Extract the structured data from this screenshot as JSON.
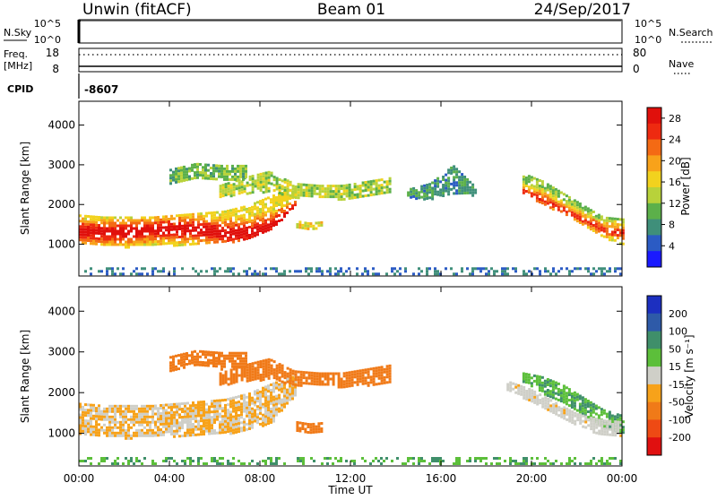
{
  "header": {
    "station": "Unwin (fitACF)",
    "beam": "Beam 01",
    "date": "24/Sep/2017"
  },
  "strips": {
    "nsky_label": "N.Sky",
    "nsky_ticks": [
      "10^5",
      "10^0"
    ],
    "nsearch_label": "N.Search",
    "freq_label_line1": "Freq.",
    "freq_label_line2": "[MHz]",
    "freq_ticks": [
      "18",
      "8"
    ],
    "nave_label": "Nave",
    "nave_ticks": [
      "80",
      "0"
    ],
    "cpid_label": "CPID",
    "cpid_value": "-8607"
  },
  "chart_data": [
    {
      "type": "heatmap",
      "panel": "power",
      "ylabel": "Slant Range [km]",
      "xlabel": "",
      "x_ticks": [
        "00:00",
        "04:00",
        "08:00",
        "12:00",
        "16:00",
        "20:00",
        "00:00"
      ],
      "x_range_hours": [
        0,
        24
      ],
      "y_ticks": [
        1000,
        2000,
        3000,
        4000
      ],
      "ylim": [
        200,
        4600
      ],
      "colorbar": {
        "label": "Power [dB]",
        "ticks": [
          "4",
          "8",
          "12",
          "16",
          "20",
          "24",
          "28"
        ],
        "range": [
          0,
          30
        ],
        "colors": [
          "#1a1aff",
          "#2b5bc4",
          "#3f8f7a",
          "#5cb04a",
          "#b8d23a",
          "#f2d21e",
          "#f8a21a",
          "#f46a14",
          "#ee2a10",
          "#e0100c"
        ]
      },
      "bands": [
        {
          "t0": 0.0,
          "t1": 9.6,
          "r0": [
            1050,
            1000,
            950,
            1000,
            1000,
            1000,
            1050,
            1150,
            1400,
            2050
          ],
          "r1": [
            1750,
            1700,
            1700,
            1700,
            1750,
            1800,
            1850,
            2000,
            2250,
            2450
          ],
          "core": [
            1350,
            1320,
            1330,
            1380,
            1420,
            1400,
            1300,
            1300,
            1500,
            2000
          ],
          "power": 22
        },
        {
          "t0": 6.2,
          "t1": 13.8,
          "r0": [
            2200,
            2300,
            2350,
            2200,
            2200,
            2150,
            2200,
            2300
          ],
          "r1": [
            2500,
            2700,
            2850,
            2550,
            2500,
            2500,
            2600,
            2700
          ],
          "power": 13
        },
        {
          "t0": 4.0,
          "t1": 7.4,
          "r0": [
            2550,
            2700,
            2600,
            2650
          ],
          "r1": [
            2900,
            3050,
            3000,
            3000
          ],
          "power": 11
        },
        {
          "t0": 9.6,
          "t1": 10.7,
          "r0": [
            1400,
            1350,
            1420
          ],
          "r1": [
            1600,
            1550,
            1580
          ],
          "power": 16
        },
        {
          "t0": 14.5,
          "t1": 17.5,
          "r0": [
            2200,
            2150,
            2300,
            2250
          ],
          "r1": [
            2400,
            2550,
            3000,
            2450
          ],
          "power": 8
        },
        {
          "t0": 19.6,
          "t1": 24.0,
          "r0": [
            2300,
            2000,
            1800,
            1500,
            1200,
            1000
          ],
          "r1": [
            2800,
            2600,
            2300,
            2000,
            1700,
            1650
          ],
          "core": [
            2350,
            2150,
            1900,
            1650,
            1400,
            1300
          ],
          "power": 18
        },
        {
          "t0": 0.0,
          "t1": 24.0,
          "r0": [
            250
          ],
          "r1": [
            420
          ],
          "power": 6
        }
      ]
    },
    {
      "type": "heatmap",
      "panel": "velocity",
      "ylabel": "Slant Range [km]",
      "xlabel": "Time UT",
      "x_ticks": [
        "00:00",
        "04:00",
        "08:00",
        "12:00",
        "16:00",
        "20:00",
        "00:00"
      ],
      "x_range_hours": [
        0,
        24
      ],
      "y_ticks": [
        1000,
        2000,
        3000,
        4000
      ],
      "ylim": [
        200,
        4600
      ],
      "colorbar": {
        "label": "Velocity [m s⁻¹]",
        "ticks": [
          "200",
          "100",
          "50",
          "15",
          "-15",
          "-50",
          "-100",
          "-200"
        ],
        "colors": [
          "#1c2fc0",
          "#2e5aa8",
          "#3f8f6a",
          "#5cbf3a",
          "#cfcfc8",
          "#f7a21a",
          "#f07a18",
          "#ee4a14",
          "#e01010"
        ]
      },
      "bands": [
        {
          "t0": 0.0,
          "t1": 9.6,
          "r0": [
            1000,
            950,
            900,
            950,
            950,
            1000,
            1000,
            1100,
            1300,
            2000
          ],
          "r1": [
            1750,
            1700,
            1700,
            1700,
            1750,
            1800,
            1850,
            2000,
            2250,
            2450
          ],
          "velocity": -10
        },
        {
          "t0": 6.2,
          "t1": 13.8,
          "r0": [
            2200,
            2300,
            2350,
            2200,
            2200,
            2150,
            2200,
            2300
          ],
          "r1": [
            2500,
            2700,
            2850,
            2550,
            2500,
            2500,
            2600,
            2700
          ],
          "velocity": -40
        },
        {
          "t0": 4.0,
          "t1": 7.4,
          "r0": [
            2550,
            2700,
            2600,
            2650
          ],
          "r1": [
            2900,
            3050,
            3000,
            3000
          ],
          "velocity": -40
        },
        {
          "t0": 9.6,
          "t1": 10.7,
          "r0": [
            1050,
            1000,
            1080
          ],
          "r1": [
            1300,
            1250,
            1280
          ],
          "velocity": -60
        },
        {
          "t0": 19.6,
          "t1": 24.0,
          "r0": [
            2300,
            2000,
            1800,
            1500,
            1200,
            1000
          ],
          "r1": [
            2500,
            2400,
            2200,
            1900,
            1600,
            1450
          ],
          "velocity": 30
        },
        {
          "t0": 18.9,
          "t1": 24.0,
          "r0": [
            2100,
            1800,
            1500,
            1200,
            1000,
            950
          ],
          "r1": [
            2300,
            2100,
            1800,
            1500,
            1350,
            1300
          ],
          "velocity": -5
        },
        {
          "t0": 0.0,
          "t1": 24.0,
          "r0": [
            250
          ],
          "r1": [
            420
          ],
          "velocity": 30
        }
      ]
    }
  ]
}
